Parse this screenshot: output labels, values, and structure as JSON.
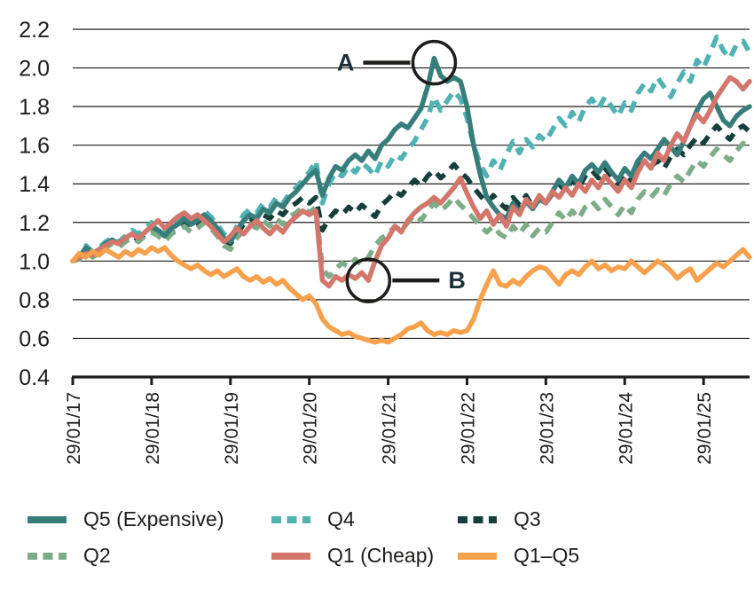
{
  "chart_data": {
    "type": "line",
    "title": "",
    "xlabel": "",
    "ylabel": "",
    "ylim": [
      0.4,
      2.2
    ],
    "y_ticks": [
      0.4,
      0.6,
      0.8,
      1.0,
      1.2,
      1.4,
      1.6,
      1.8,
      2.0,
      2.2
    ],
    "grid": "horizontal",
    "legend_position": "bottom",
    "axis_color": "#1d1d1b",
    "annotation_text_color": "#1e2f3c",
    "x_unit": "monthly points starting 29/01/17",
    "n_points": 104,
    "x_ticks": [
      {
        "point_index": 0,
        "label": "29/01/17"
      },
      {
        "point_index": 12,
        "label": "29/01/18"
      },
      {
        "point_index": 24,
        "label": "29/01/19"
      },
      {
        "point_index": 36,
        "label": "29/01/20"
      },
      {
        "point_index": 48,
        "label": "29/01/21"
      },
      {
        "point_index": 60,
        "label": "29/01/22"
      },
      {
        "point_index": 72,
        "label": "29/01/23"
      },
      {
        "point_index": 84,
        "label": "29/01/24"
      },
      {
        "point_index": 96,
        "label": "29/01/25"
      }
    ],
    "series": [
      {
        "name": "Q5 (Expensive)",
        "style": "solid",
        "color": "#377e7b",
        "z": 4,
        "values": [
          1.0,
          1.02,
          1.07,
          1.04,
          1.06,
          1.09,
          1.11,
          1.09,
          1.12,
          1.14,
          1.12,
          1.15,
          1.18,
          1.16,
          1.13,
          1.17,
          1.19,
          1.22,
          1.19,
          1.21,
          1.24,
          1.21,
          1.17,
          1.12,
          1.1,
          1.16,
          1.21,
          1.24,
          1.22,
          1.27,
          1.25,
          1.3,
          1.28,
          1.33,
          1.36,
          1.4,
          1.44,
          1.47,
          1.34,
          1.43,
          1.49,
          1.47,
          1.52,
          1.55,
          1.52,
          1.57,
          1.53,
          1.6,
          1.63,
          1.68,
          1.71,
          1.69,
          1.74,
          1.79,
          1.9,
          2.05,
          1.96,
          1.93,
          1.95,
          1.93,
          1.8,
          1.6,
          1.45,
          1.33,
          1.28,
          1.24,
          1.22,
          1.3,
          1.25,
          1.31,
          1.27,
          1.32,
          1.3,
          1.36,
          1.42,
          1.38,
          1.44,
          1.4,
          1.47,
          1.5,
          1.46,
          1.51,
          1.46,
          1.42,
          1.48,
          1.44,
          1.52,
          1.56,
          1.53,
          1.58,
          1.63,
          1.59,
          1.55,
          1.62,
          1.7,
          1.78,
          1.84,
          1.87,
          1.8,
          1.73,
          1.7,
          1.75,
          1.78,
          1.8
        ]
      },
      {
        "name": "Q4",
        "style": "dashed",
        "color": "#50b2b2",
        "z": 3,
        "values": [
          1.0,
          1.03,
          1.08,
          1.05,
          1.07,
          1.1,
          1.12,
          1.1,
          1.13,
          1.16,
          1.14,
          1.17,
          1.2,
          1.17,
          1.14,
          1.18,
          1.21,
          1.24,
          1.21,
          1.23,
          1.26,
          1.23,
          1.19,
          1.14,
          1.12,
          1.18,
          1.24,
          1.27,
          1.25,
          1.3,
          1.28,
          1.33,
          1.3,
          1.35,
          1.38,
          1.42,
          1.46,
          1.52,
          1.3,
          1.4,
          1.46,
          1.44,
          1.49,
          1.46,
          1.51,
          1.48,
          1.44,
          1.52,
          1.49,
          1.55,
          1.53,
          1.58,
          1.62,
          1.68,
          1.74,
          1.85,
          1.78,
          1.83,
          1.88,
          1.84,
          1.74,
          1.6,
          1.5,
          1.44,
          1.52,
          1.47,
          1.55,
          1.62,
          1.56,
          1.63,
          1.59,
          1.65,
          1.62,
          1.68,
          1.74,
          1.7,
          1.77,
          1.72,
          1.8,
          1.84,
          1.79,
          1.85,
          1.8,
          1.75,
          1.82,
          1.78,
          1.87,
          1.92,
          1.88,
          1.95,
          1.9,
          1.85,
          1.92,
          1.98,
          1.93,
          2.04,
          2.0,
          2.08,
          2.16,
          2.09,
          2.05,
          2.12,
          2.14,
          2.08
        ]
      },
      {
        "name": "Q3",
        "style": "dashed",
        "color": "#143f3b",
        "z": 1,
        "values": [
          1.0,
          1.02,
          1.06,
          1.03,
          1.05,
          1.08,
          1.1,
          1.08,
          1.11,
          1.13,
          1.11,
          1.14,
          1.16,
          1.14,
          1.11,
          1.15,
          1.17,
          1.2,
          1.17,
          1.19,
          1.22,
          1.19,
          1.15,
          1.11,
          1.09,
          1.14,
          1.19,
          1.22,
          1.2,
          1.24,
          1.22,
          1.26,
          1.24,
          1.28,
          1.3,
          1.33,
          1.3,
          1.33,
          1.16,
          1.22,
          1.26,
          1.24,
          1.28,
          1.25,
          1.29,
          1.26,
          1.23,
          1.29,
          1.32,
          1.36,
          1.34,
          1.38,
          1.42,
          1.39,
          1.44,
          1.47,
          1.43,
          1.46,
          1.5,
          1.46,
          1.43,
          1.38,
          1.34,
          1.3,
          1.34,
          1.3,
          1.27,
          1.33,
          1.29,
          1.34,
          1.28,
          1.33,
          1.3,
          1.35,
          1.4,
          1.36,
          1.42,
          1.38,
          1.44,
          1.47,
          1.43,
          1.48,
          1.44,
          1.4,
          1.45,
          1.41,
          1.48,
          1.52,
          1.49,
          1.52,
          1.48,
          1.54,
          1.58,
          1.55,
          1.6,
          1.64,
          1.61,
          1.66,
          1.7,
          1.66,
          1.63,
          1.68,
          1.7,
          1.67
        ]
      },
      {
        "name": "Q2",
        "style": "dashed",
        "color": "#7dac88",
        "z": 2,
        "values": [
          1.0,
          1.01,
          1.05,
          1.02,
          1.04,
          1.07,
          1.09,
          1.07,
          1.1,
          1.12,
          1.1,
          1.13,
          1.15,
          1.13,
          1.1,
          1.14,
          1.16,
          1.18,
          1.15,
          1.17,
          1.2,
          1.17,
          1.13,
          1.08,
          1.06,
          1.12,
          1.16,
          1.19,
          1.17,
          1.21,
          1.18,
          1.22,
          1.19,
          1.23,
          1.25,
          1.28,
          1.25,
          1.28,
          0.96,
          0.92,
          0.96,
          0.99,
          0.97,
          1.01,
          0.98,
          1.02,
          1.08,
          1.12,
          1.14,
          1.18,
          1.16,
          1.2,
          1.24,
          1.21,
          1.26,
          1.3,
          1.26,
          1.29,
          1.33,
          1.29,
          1.26,
          1.22,
          1.18,
          1.15,
          1.18,
          1.14,
          1.12,
          1.18,
          1.14,
          1.19,
          1.13,
          1.17,
          1.15,
          1.2,
          1.25,
          1.21,
          1.26,
          1.22,
          1.28,
          1.31,
          1.27,
          1.32,
          1.28,
          1.24,
          1.29,
          1.25,
          1.32,
          1.36,
          1.33,
          1.37,
          1.34,
          1.4,
          1.44,
          1.41,
          1.47,
          1.52,
          1.49,
          1.54,
          1.58,
          1.55,
          1.52,
          1.57,
          1.61,
          1.6
        ]
      },
      {
        "name": "Q1 (Cheap)",
        "style": "solid",
        "color": "#d3766c",
        "z": 5,
        "values": [
          1.0,
          1.02,
          1.04,
          1.03,
          1.06,
          1.08,
          1.1,
          1.09,
          1.12,
          1.14,
          1.12,
          1.15,
          1.18,
          1.21,
          1.17,
          1.2,
          1.23,
          1.25,
          1.22,
          1.24,
          1.21,
          1.18,
          1.14,
          1.1,
          1.13,
          1.17,
          1.14,
          1.18,
          1.21,
          1.17,
          1.14,
          1.18,
          1.15,
          1.2,
          1.23,
          1.26,
          1.24,
          1.26,
          0.9,
          0.87,
          0.92,
          0.9,
          0.93,
          0.91,
          0.94,
          0.9,
          1.0,
          1.08,
          1.12,
          1.18,
          1.15,
          1.21,
          1.25,
          1.28,
          1.3,
          1.33,
          1.3,
          1.34,
          1.38,
          1.43,
          1.35,
          1.28,
          1.22,
          1.26,
          1.19,
          1.24,
          1.18,
          1.28,
          1.24,
          1.32,
          1.28,
          1.34,
          1.3,
          1.36,
          1.33,
          1.38,
          1.34,
          1.4,
          1.36,
          1.42,
          1.38,
          1.44,
          1.4,
          1.36,
          1.42,
          1.38,
          1.46,
          1.52,
          1.48,
          1.56,
          1.52,
          1.6,
          1.66,
          1.62,
          1.7,
          1.76,
          1.72,
          1.78,
          1.85,
          1.9,
          1.95,
          1.93,
          1.89,
          1.93
        ]
      },
      {
        "name": "Q1–Q5",
        "style": "solid",
        "color": "#f7a14d",
        "z": 6,
        "values": [
          1.0,
          1.04,
          1.02,
          1.05,
          1.03,
          1.06,
          1.04,
          1.02,
          1.05,
          1.03,
          1.06,
          1.04,
          1.07,
          1.05,
          1.07,
          1.03,
          1.0,
          0.98,
          0.96,
          0.98,
          0.95,
          0.93,
          0.95,
          0.92,
          0.94,
          0.96,
          0.92,
          0.9,
          0.92,
          0.89,
          0.91,
          0.88,
          0.9,
          0.86,
          0.83,
          0.8,
          0.82,
          0.78,
          0.7,
          0.66,
          0.64,
          0.62,
          0.63,
          0.61,
          0.6,
          0.59,
          0.58,
          0.59,
          0.58,
          0.6,
          0.62,
          0.65,
          0.66,
          0.68,
          0.64,
          0.62,
          0.63,
          0.62,
          0.64,
          0.63,
          0.64,
          0.7,
          0.8,
          0.88,
          0.95,
          0.88,
          0.87,
          0.9,
          0.88,
          0.92,
          0.95,
          0.97,
          0.96,
          0.92,
          0.88,
          0.93,
          0.95,
          0.93,
          0.97,
          1.0,
          0.96,
          0.98,
          0.95,
          0.97,
          0.96,
          1.0,
          0.97,
          0.94,
          0.97,
          1.0,
          0.98,
          0.95,
          0.91,
          0.94,
          0.96,
          0.9,
          0.93,
          0.96,
          0.99,
          0.97,
          1.0,
          1.03,
          1.06,
          1.02
        ]
      }
    ],
    "annotations": [
      {
        "label": "A",
        "series": "Q5 (Expensive)",
        "point_index": 55,
        "value": 2.05,
        "label_side": "left"
      },
      {
        "label": "B",
        "series": "Q1 (Cheap)",
        "point_index": 45,
        "value": 0.9,
        "label_side": "right"
      }
    ]
  },
  "legend": {
    "items": [
      "Q5 (Expensive)",
      "Q4",
      "Q3",
      "Q2",
      "Q1 (Cheap)",
      "Q1–Q5"
    ]
  }
}
